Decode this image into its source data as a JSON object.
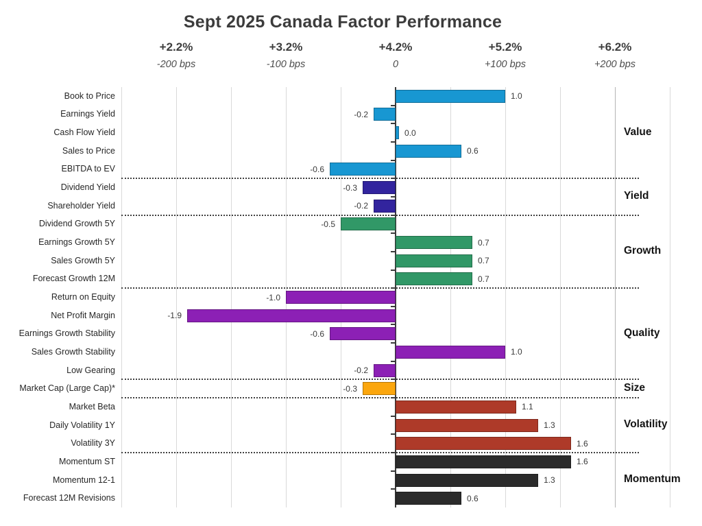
{
  "title": "Sept 2025 Canada Factor Performance",
  "chart_data": {
    "type": "bar",
    "orientation": "horizontal",
    "title": "Sept 2025 Canada Factor Performance",
    "xlim": [
      -2.5,
      2.5
    ],
    "grid_step": 0.5,
    "grid": true,
    "x_ticks": [
      {
        "value": -2,
        "pct_label": "+2.2%",
        "bps_label": "-200 bps"
      },
      {
        "value": -1,
        "pct_label": "+3.2%",
        "bps_label": "-100 bps"
      },
      {
        "value": 0,
        "pct_label": "+4.2%",
        "bps_label": "0"
      },
      {
        "value": 1,
        "pct_label": "+5.2%",
        "bps_label": "+100 bps"
      },
      {
        "value": 2,
        "pct_label": "+6.2%",
        "bps_label": "+200 bps"
      }
    ],
    "group_label_position": "right",
    "groups": [
      {
        "name": "Value",
        "color": "#1897D2",
        "rows": [
          {
            "label": "Book to Price",
            "value": 1.0
          },
          {
            "label": "Earnings Yield",
            "value": -0.2
          },
          {
            "label": "Cash Flow Yield",
            "value": 0.0
          },
          {
            "label": "Sales to Price",
            "value": 0.6
          },
          {
            "label": "EBITDA to EV",
            "value": -0.6
          }
        ]
      },
      {
        "name": "Yield",
        "color": "#32249E",
        "rows": [
          {
            "label": "Dividend Yield",
            "value": -0.3
          },
          {
            "label": "Shareholder Yield",
            "value": -0.2
          }
        ]
      },
      {
        "name": "Growth",
        "color": "#319867",
        "rows": [
          {
            "label": "Dividend Growth 5Y",
            "value": -0.5
          },
          {
            "label": "Earnings Growth 5Y",
            "value": 0.7
          },
          {
            "label": "Sales Growth 5Y",
            "value": 0.7
          },
          {
            "label": "Forecast Growth 12M",
            "value": 0.7
          }
        ]
      },
      {
        "name": "Quality",
        "color": "#8C20B5",
        "rows": [
          {
            "label": "Return on Equity",
            "value": -1.0
          },
          {
            "label": "Net Profit Margin",
            "value": -1.9
          },
          {
            "label": "Earnings Growth Stability",
            "value": -0.6
          },
          {
            "label": "Sales Growth Stability",
            "value": 1.0
          },
          {
            "label": "Low Gearing",
            "value": -0.2
          }
        ]
      },
      {
        "name": "Size",
        "color": "#FBA60D",
        "rows": [
          {
            "label": "Market Cap (Large Cap)*",
            "value": -0.3
          }
        ]
      },
      {
        "name": "Volatility",
        "color": "#AE3A29",
        "rows": [
          {
            "label": "Market Beta",
            "value": 1.1
          },
          {
            "label": "Daily Volatility 1Y",
            "value": 1.3
          },
          {
            "label": "Volatility 3Y",
            "value": 1.6
          }
        ]
      },
      {
        "name": "Momentum",
        "color": "#2B2B2B",
        "rows": [
          {
            "label": "Momentum ST",
            "value": 1.6
          },
          {
            "label": "Momentum 12-1",
            "value": 1.3
          },
          {
            "label": "Forecast 12M Revisions",
            "value": 0.6
          }
        ]
      }
    ]
  }
}
